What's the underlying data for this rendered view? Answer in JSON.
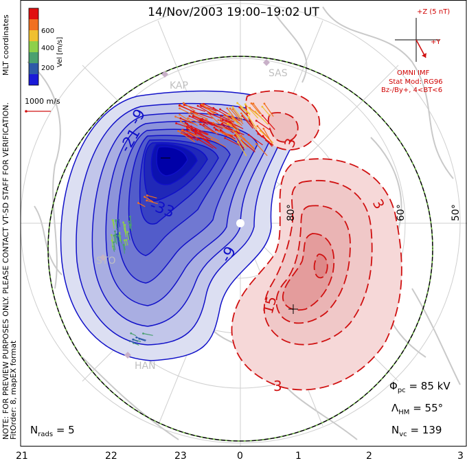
{
  "title": "14/Nov/2003 19:00–19:02 UT",
  "colorbar": {
    "label": "Vel [m/s]",
    "ticks": [
      "600",
      "400",
      "200"
    ],
    "colors": [
      "#1a1ad8",
      "#2e5aa8",
      "#4aa070",
      "#8ed04a",
      "#f0c030",
      "#f07020",
      "#e01010"
    ]
  },
  "velocity_scale": "1000 m/s",
  "side_notes": {
    "mlt": "MLT coordinates",
    "preview": "NOTE: FOR PREVIEW PURPOSES ONLY. PLEASE CONTACT VT-SD STAFF FOR VERIFICATION.",
    "fit": "FitOrder: 8, mapEX format"
  },
  "imf": {
    "z_label": "+Z (5 nT)",
    "y_label": "+Y",
    "source": "OMNI IMF",
    "model": "Stat Mod: RG96",
    "condition": "Bz-/By+, 4<BT<6"
  },
  "stations": [
    "KAP",
    "SAS",
    "STO",
    "HAN"
  ],
  "latitude_labels": [
    "80°",
    "60°",
    "50°"
  ],
  "contour_labels": {
    "negative": [
      "-9",
      "-21",
      "-33",
      "-9"
    ],
    "positive": [
      "3",
      "3",
      "15",
      "3"
    ]
  },
  "stats": {
    "phi_label": "Φ",
    "phi_sub": "pc",
    "phi_value": "= 85 kV",
    "lambda_label": "Λ",
    "lambda_sub": "HM",
    "lambda_value": "= 55°",
    "nvc_label": "N",
    "nvc_sub": "vc",
    "nvc_value": "= 139",
    "nrads_label": "N",
    "nrads_sub": "rads",
    "nrads_value": "= 5"
  },
  "mlt_ticks": [
    "21",
    "22",
    "23",
    "0",
    "1",
    "2",
    "3"
  ],
  "colors": {
    "negative": "#1010c8",
    "positive": "#d01010",
    "boundary": "#70c040",
    "grid": "#c8c8c8"
  }
}
